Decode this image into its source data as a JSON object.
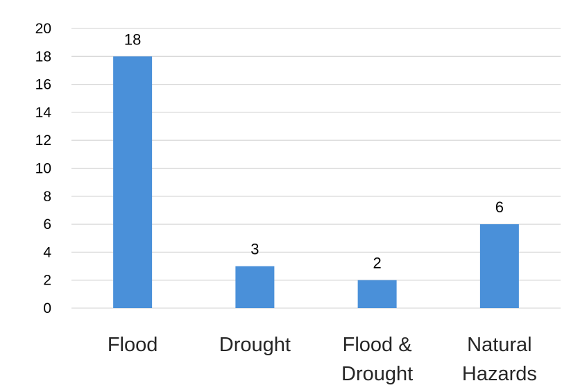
{
  "chart_data": {
    "type": "bar",
    "title": "",
    "xlabel": "",
    "ylabel": "",
    "categories": [
      [
        "Flood"
      ],
      [
        "Drought"
      ],
      [
        "Flood &",
        "Drought"
      ],
      [
        "Natural",
        "Hazards"
      ]
    ],
    "values": [
      18,
      3,
      2,
      6
    ],
    "data_labels": [
      "18",
      "3",
      "2",
      "6"
    ],
    "ylim": [
      0,
      20
    ],
    "yticks": [
      0,
      2,
      4,
      6,
      8,
      10,
      12,
      14,
      16,
      18,
      20
    ],
    "grid": true,
    "legend": "none",
    "colors": {
      "bar": "#4a90d9",
      "grid": "#d9d9d9",
      "text": "#000000"
    }
  }
}
